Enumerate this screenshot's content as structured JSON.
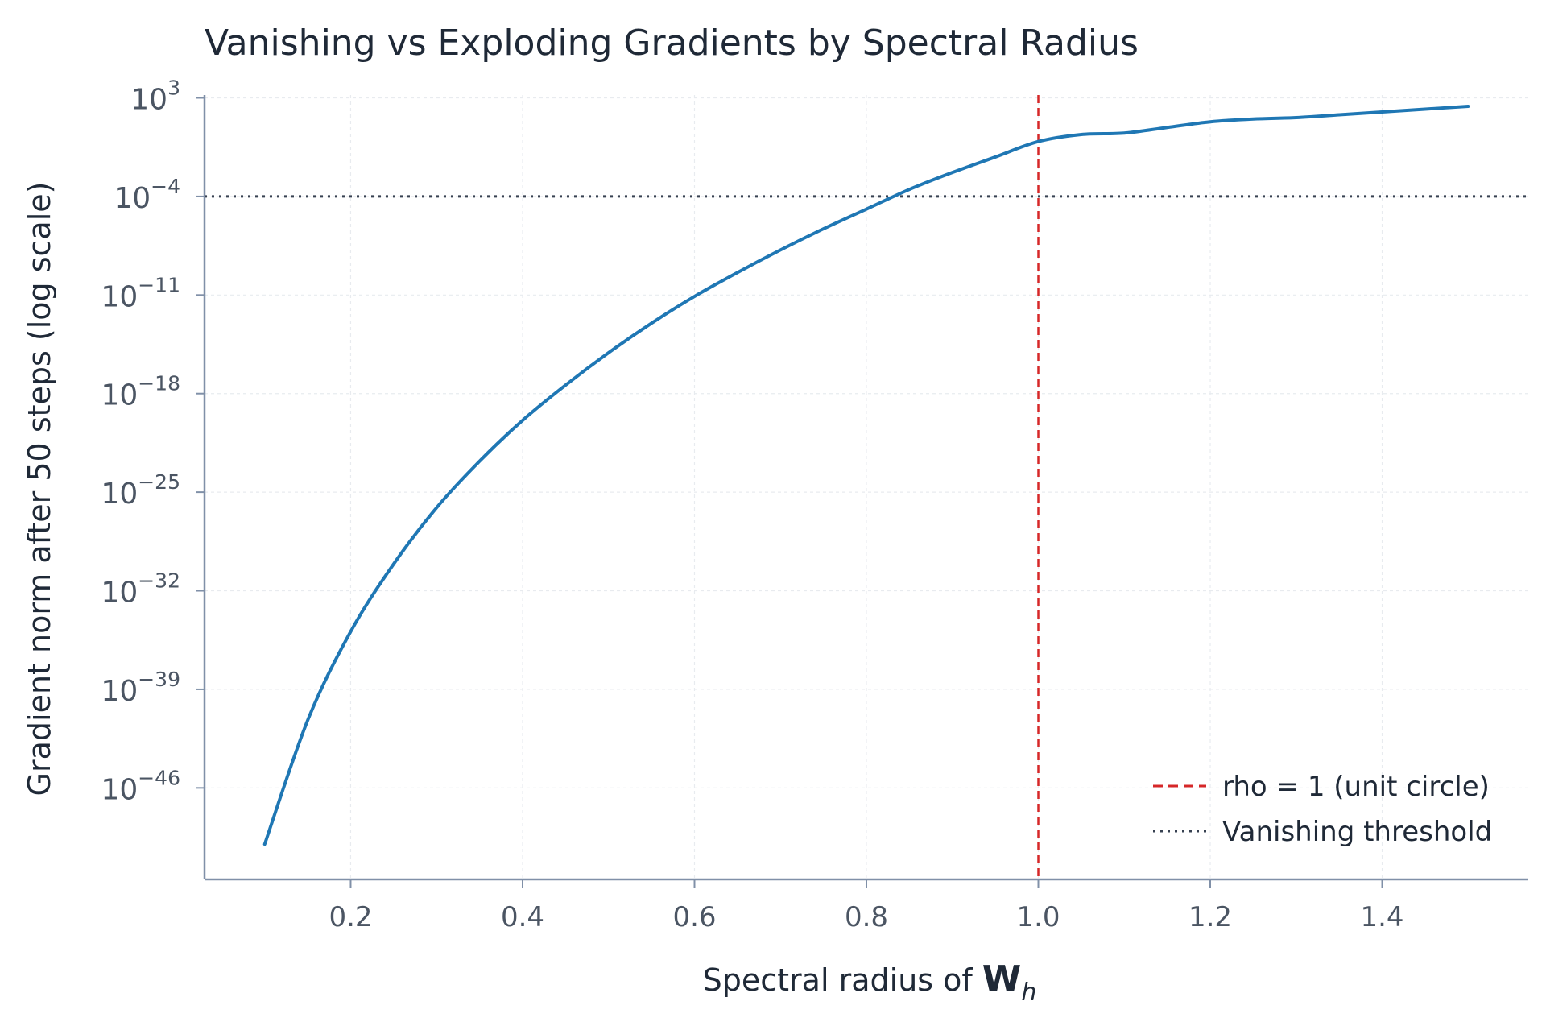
{
  "chart_data": {
    "type": "line",
    "title": "Vanishing vs Exploding Gradients by Spectral Radius",
    "xlabel": "Spectral radius of",
    "xlabel_symbol": "W",
    "xlabel_subscript": "h",
    "ylabel": "Gradient norm after 50 steps (log scale)",
    "y_scale": "log",
    "xlim": [
      0.03,
      1.57
    ],
    "ylim_log10": [
      -52.5,
      3.2
    ],
    "x_ticks": [
      "0.2",
      "0.4",
      "0.6",
      "0.8",
      "1.0",
      "1.2",
      "1.4"
    ],
    "y_ticks": [
      {
        "base": "10",
        "exp": "3"
      },
      {
        "base": "10",
        "exp": "−4"
      },
      {
        "base": "10",
        "exp": "−11"
      },
      {
        "base": "10",
        "exp": "−18"
      },
      {
        "base": "10",
        "exp": "−25"
      },
      {
        "base": "10",
        "exp": "−32"
      },
      {
        "base": "10",
        "exp": "−39"
      },
      {
        "base": "10",
        "exp": "−46"
      }
    ],
    "grid": true,
    "legend_position": "bottom-right",
    "series": [
      {
        "name": "",
        "color": "#1f77b4",
        "style": "solid",
        "x": [
          0.1,
          0.15,
          0.2,
          0.25,
          0.3,
          0.35,
          0.4,
          0.45,
          0.5,
          0.55,
          0.6,
          0.65,
          0.7,
          0.75,
          0.8,
          0.85,
          0.9,
          0.95,
          1.0,
          1.05,
          1.1,
          1.15,
          1.2,
          1.25,
          1.3,
          1.35,
          1.4,
          1.45,
          1.5
        ],
        "y_log10": [
          -50.0,
          -41.2,
          -34.9,
          -30.1,
          -26.1,
          -22.8,
          -19.9,
          -17.4,
          -15.1,
          -13.0,
          -11.1,
          -9.4,
          -7.8,
          -6.3,
          -4.9,
          -3.5,
          -2.3,
          -1.2,
          -0.1,
          0.4,
          0.5,
          0.9,
          1.3,
          1.5,
          1.6,
          1.8,
          2.0,
          2.2,
          2.4
        ]
      }
    ],
    "reference_lines": [
      {
        "orientation": "vertical",
        "x": 1.0,
        "name": "rho = 1 (unit circle)",
        "color": "#d62728",
        "style": "dashed"
      },
      {
        "orientation": "horizontal",
        "y_log10": -4,
        "name": "Vanishing threshold",
        "color": "#374151",
        "style": "dotted"
      }
    ]
  }
}
